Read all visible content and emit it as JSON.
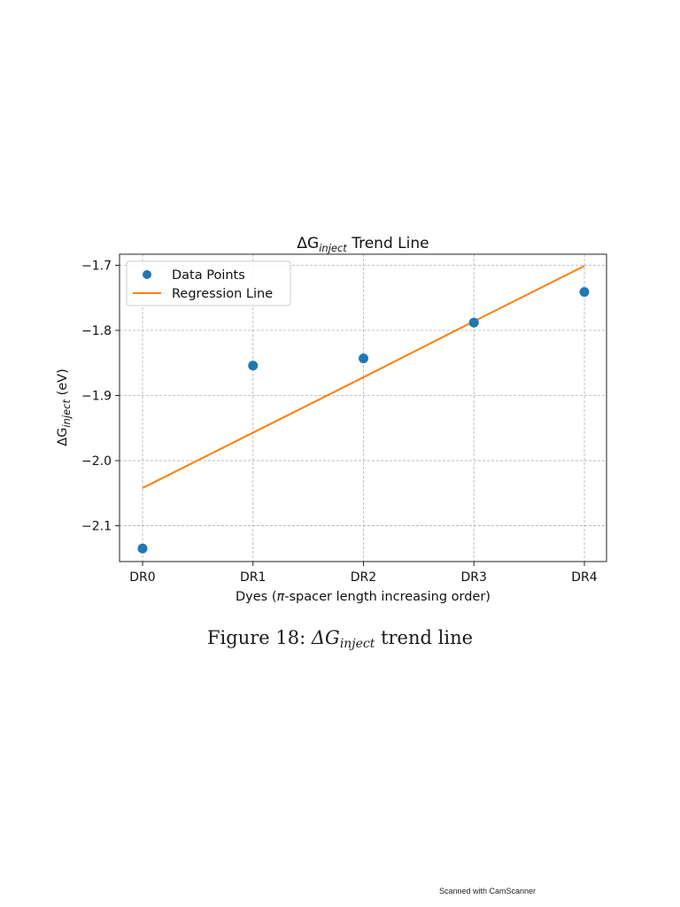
{
  "chart_data": {
    "type": "scatter",
    "title_prefix": "ΔG",
    "title_sub": "inject",
    "title_suffix": " Trend Line",
    "xlabel_prefix": "Dyes (",
    "xlabel_pi": "π",
    "xlabel_suffix": "-spacer length increasing order)",
    "ylabel_prefix": "ΔG",
    "ylabel_sub": "inject",
    "ylabel_suffix": " (eV)",
    "categories": [
      "DR0",
      "DR1",
      "DR2",
      "DR3",
      "DR4"
    ],
    "yticks": [
      -1.7,
      -1.8,
      -1.9,
      -2.0,
      -2.1
    ],
    "ytick_labels": [
      "−1.7",
      "−1.8",
      "−1.9",
      "−2.0",
      "−2.1"
    ],
    "ylim": [
      -2.155,
      -1.683
    ],
    "grid": true,
    "legend_position": "top-left",
    "series": [
      {
        "name": "Data Points",
        "kind": "scatter",
        "color": "#1f77b4",
        "values": [
          -2.135,
          -1.854,
          -1.843,
          -1.788,
          -1.741
        ]
      },
      {
        "name": "Regression Line",
        "kind": "line",
        "color": "#ff7f0e",
        "values": [
          -2.042,
          -1.957,
          -1.872,
          -1.786,
          -1.701
        ]
      }
    ]
  },
  "caption": {
    "prefix": "Figure 18:  ",
    "math": "ΔG",
    "sub": "inject",
    "suffix": " trend line"
  },
  "scanner_text": "Scanned with CamScanner"
}
